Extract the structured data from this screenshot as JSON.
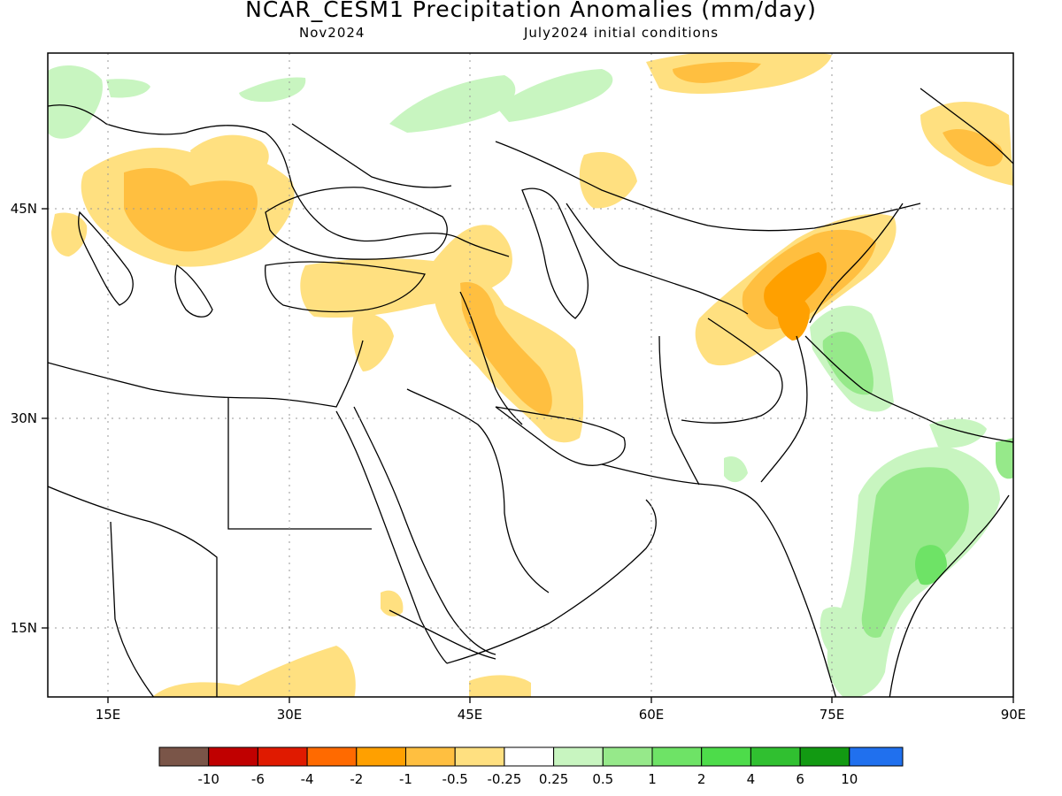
{
  "header": {
    "title": "NCAR_CESM1 Precipitation Anomalies (mm/day)",
    "valid_month": "Nov2024",
    "init": "July2024 initial conditions"
  },
  "map": {
    "lon_range": [
      10,
      90
    ],
    "lat_range": [
      10,
      55
    ],
    "lon_ticks": [
      {
        "value": 15,
        "label": "15E"
      },
      {
        "value": 30,
        "label": "30E"
      },
      {
        "value": 45,
        "label": "45E"
      },
      {
        "value": 60,
        "label": "60E"
      },
      {
        "value": 75,
        "label": "75E"
      },
      {
        "value": 90,
        "label": "90E"
      }
    ],
    "lat_ticks": [
      {
        "value": 45,
        "label": "45N"
      },
      {
        "value": 30,
        "label": "30N"
      },
      {
        "value": 15,
        "label": "15N"
      }
    ],
    "gridlines": "dotted"
  },
  "colorbar": {
    "colors": [
      "#7a5548",
      "#c00000",
      "#e01a00",
      "#ff6a00",
      "#ffa000",
      "#ffbf40",
      "#ffe080",
      "#ffffff",
      "#c8f5c0",
      "#96e98a",
      "#6ee366",
      "#4ddc4a",
      "#30c030",
      "#129a12",
      "#2070ee"
    ],
    "labels": [
      "-10",
      "-6",
      "-4",
      "-2",
      "-1",
      "-0.5",
      "-0.25",
      "0.25",
      "0.5",
      "1",
      "2",
      "4",
      "6",
      "10"
    ]
  }
}
